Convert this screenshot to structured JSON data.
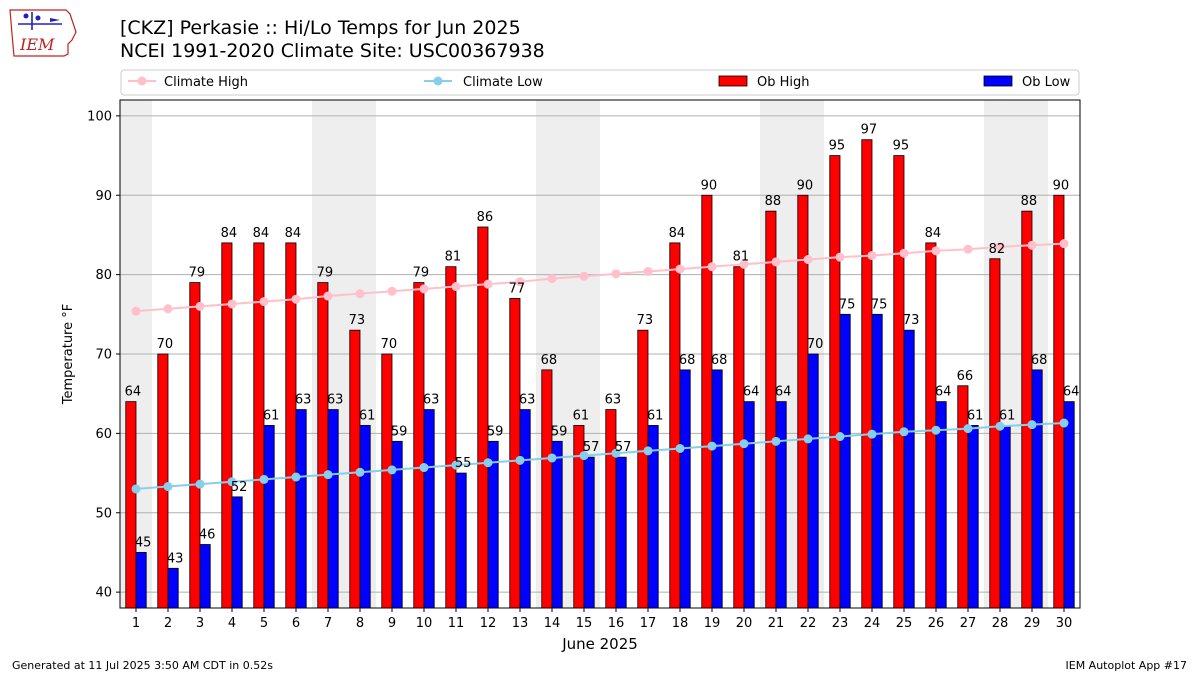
{
  "header": {
    "title_line1": "[CKZ] Perkasie :: Hi/Lo Temps for Jun 2025",
    "title_line2": "NCEI 1991-2020 Climate Site: USC00367938",
    "logo_text": "IEM"
  },
  "footer": {
    "generated": "Generated at 11 Jul 2025 3:50 AM CDT in 0.52s",
    "app": "IEM Autoplot App #17"
  },
  "colors": {
    "ob_high": "#ff0000",
    "ob_low": "#0000ff",
    "climate_high": "#ffc0cb",
    "climate_low": "#87ceeb",
    "weekend_shade": "#eeeeee",
    "grid": "#b0b0b0"
  },
  "chart_data": {
    "type": "bar",
    "xlabel": "June 2025",
    "ylabel": "Temperature °F",
    "ylim": [
      38,
      102
    ],
    "yticks": [
      40,
      50,
      60,
      70,
      80,
      90,
      100
    ],
    "grid": "horizontal",
    "legend_position": "top",
    "legend": [
      "Climate High",
      "Climate Low",
      "Ob High",
      "Ob Low"
    ],
    "categories": [
      1,
      2,
      3,
      4,
      5,
      6,
      7,
      8,
      9,
      10,
      11,
      12,
      13,
      14,
      15,
      16,
      17,
      18,
      19,
      20,
      21,
      22,
      23,
      24,
      25,
      26,
      27,
      28,
      29,
      30
    ],
    "shaded_days": [
      1,
      7,
      8,
      14,
      15,
      21,
      22,
      28,
      29
    ],
    "series": [
      {
        "name": "Ob High",
        "kind": "bar",
        "values": [
          64,
          70,
          79,
          84,
          84,
          84,
          79,
          73,
          70,
          79,
          81,
          86,
          77,
          68,
          61,
          63,
          73,
          84,
          90,
          81,
          88,
          90,
          95,
          97,
          95,
          84,
          66,
          82,
          88,
          90
        ]
      },
      {
        "name": "Ob Low",
        "kind": "bar",
        "values": [
          45,
          43,
          46,
          52,
          61,
          63,
          63,
          61,
          59,
          63,
          55,
          59,
          63,
          59,
          57,
          57,
          61,
          68,
          68,
          64,
          64,
          70,
          75,
          75,
          73,
          64,
          61,
          61,
          68,
          64
        ]
      },
      {
        "name": "Climate High",
        "kind": "line",
        "values": [
          75.4,
          75.7,
          76.0,
          76.3,
          76.6,
          76.9,
          77.3,
          77.6,
          77.9,
          78.2,
          78.5,
          78.8,
          79.1,
          79.5,
          79.8,
          80.1,
          80.4,
          80.7,
          81.0,
          81.3,
          81.6,
          81.9,
          82.2,
          82.4,
          82.7,
          83.0,
          83.2,
          83.5,
          83.7,
          83.9
        ]
      },
      {
        "name": "Climate Low",
        "kind": "line",
        "values": [
          53.0,
          53.3,
          53.6,
          53.9,
          54.2,
          54.5,
          54.8,
          55.1,
          55.4,
          55.7,
          56.0,
          56.3,
          56.6,
          56.9,
          57.2,
          57.5,
          57.8,
          58.1,
          58.4,
          58.7,
          59.0,
          59.3,
          59.6,
          59.9,
          60.2,
          60.4,
          60.6,
          60.9,
          61.1,
          61.3
        ]
      }
    ]
  }
}
